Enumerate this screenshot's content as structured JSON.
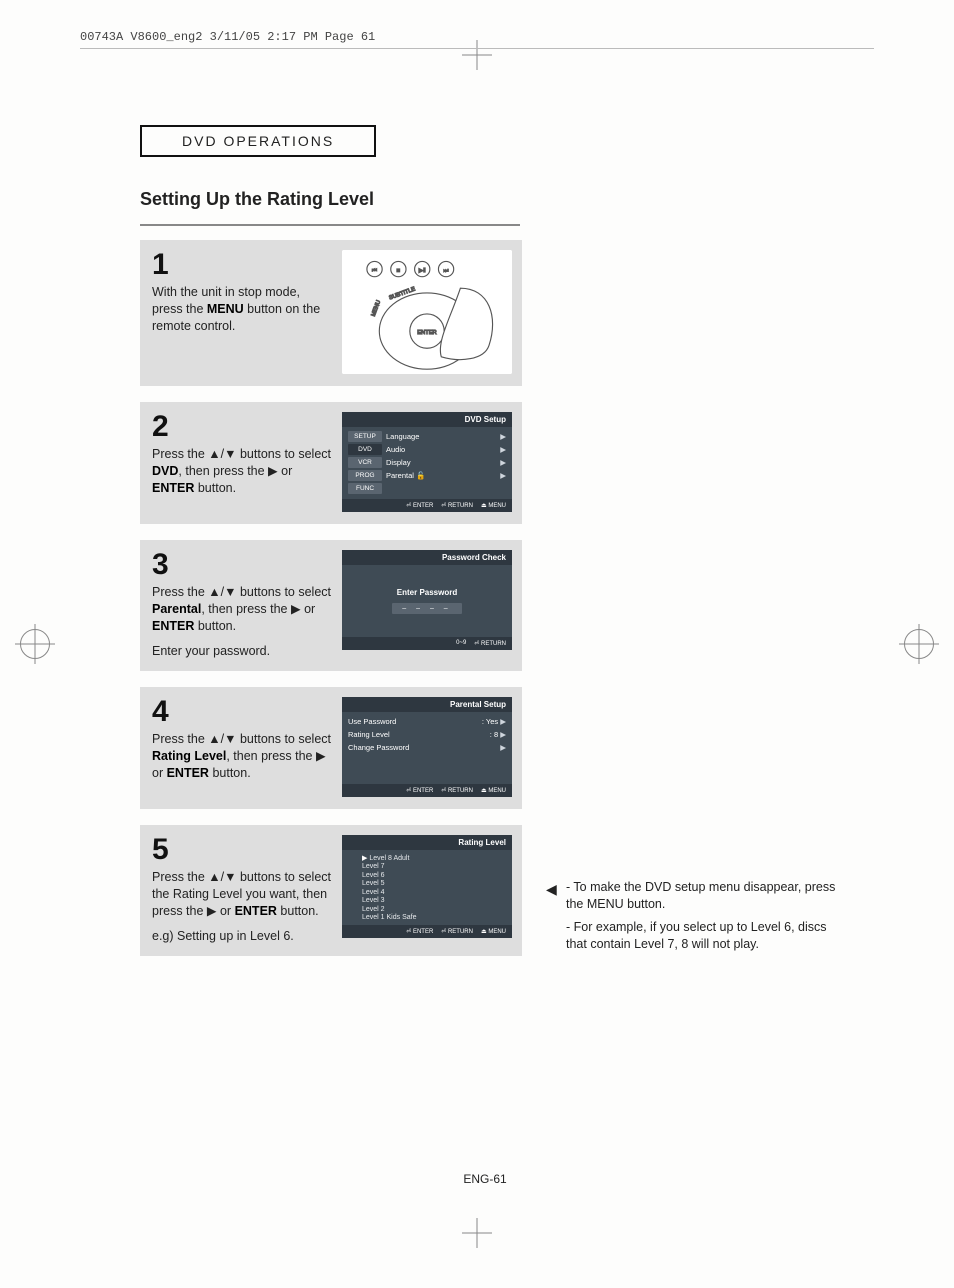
{
  "prepress_header": "00743A V8600_eng2  3/11/05  2:17 PM  Page 61",
  "section_header": "DVD OPERATIONS",
  "title": "Setting Up the Rating Level",
  "page_number": "ENG-61",
  "colors": {
    "page_bg": "#fdfdfc",
    "step_bg": "#dedede",
    "osd_bg": "#3f4b55",
    "osd_dark": "#2e3740",
    "osd_side": "#5a6570",
    "text": "#222222",
    "rule": "#888888"
  },
  "steps": [
    {
      "num": "1",
      "body_pre": "With the unit in stop mode, press the ",
      "body_bold": "MENU",
      "body_post": " button on the remote control.",
      "extra": "",
      "thumb_type": "remote"
    },
    {
      "num": "2",
      "body_pre": "Press the ▲/▼ buttons to select ",
      "body_bold": "DVD",
      "body_post": ", then press the ▶ or ",
      "body_bold2": "ENTER",
      "body_post2": " button.",
      "extra": "",
      "thumb_type": "dvd_setup"
    },
    {
      "num": "3",
      "body_pre": "Press the ▲/▼ buttons to select ",
      "body_bold": "Parental",
      "body_post": ", then press the ▶ or ",
      "body_bold2": "ENTER",
      "body_post2": " button.",
      "extra": "Enter your password.",
      "thumb_type": "password"
    },
    {
      "num": "4",
      "body_pre": "Press the ▲/▼ buttons to select ",
      "body_bold": "Rating Level",
      "body_post": ", then press the ▶ or ",
      "body_bold2": "ENTER",
      "body_post2": " button.",
      "extra": "",
      "thumb_type": "parental_setup"
    },
    {
      "num": "5",
      "body_pre": "Press the ▲/▼ buttons to select the Rating Level you want, then press the ▶ or ",
      "body_bold": "ENTER",
      "body_post": " button.",
      "extra": "e.g) Setting up in Level 6.",
      "thumb_type": "rating_level"
    }
  ],
  "osd": {
    "dvd_setup": {
      "title": "DVD Setup",
      "sidebar": [
        "SETUP",
        "DVD",
        "VCR",
        "PROG",
        "FUNC"
      ],
      "sidebar_active_index": 1,
      "menu": [
        "Language",
        "Audio",
        "Display",
        "Parental"
      ],
      "parental_lock_icon": "🔓",
      "footer": [
        "⏎ ENTER",
        "⏎ RETURN",
        "⏏ MENU"
      ]
    },
    "password": {
      "title": "Password Check",
      "prompt": "Enter Password",
      "mask": "– – – –",
      "footer": [
        "0~9",
        "⏎ RETURN"
      ]
    },
    "parental_setup": {
      "title": "Parental Setup",
      "rows": [
        {
          "label": "Use Password",
          "sep": ":",
          "value": "Yes",
          "arrow": "▶"
        },
        {
          "label": "Rating Level",
          "sep": ":",
          "value": "8",
          "arrow": "▶"
        },
        {
          "label": "Change Password",
          "sep": "",
          "value": "",
          "arrow": "▶"
        }
      ],
      "footer": [
        "⏎ ENTER",
        "⏎ RETURN",
        "⏏ MENU"
      ]
    },
    "rating_level": {
      "title": "Rating Level",
      "items": [
        "Level 8 Adult",
        "Level 7",
        "Level 6",
        "Level 5",
        "Level 4",
        "Level 3",
        "Level 2",
        "Level 1 Kids Safe"
      ],
      "selected_index": 0,
      "footer": [
        "⏎ ENTER",
        "⏎ RETURN",
        "⏏ MENU"
      ]
    }
  },
  "side_notes": {
    "pointer": "◀",
    "items": [
      "To make the DVD setup menu disappear, press the MENU button.",
      "For example, if you select up to Level 6, discs that contain Level 7, 8 will not play."
    ]
  }
}
